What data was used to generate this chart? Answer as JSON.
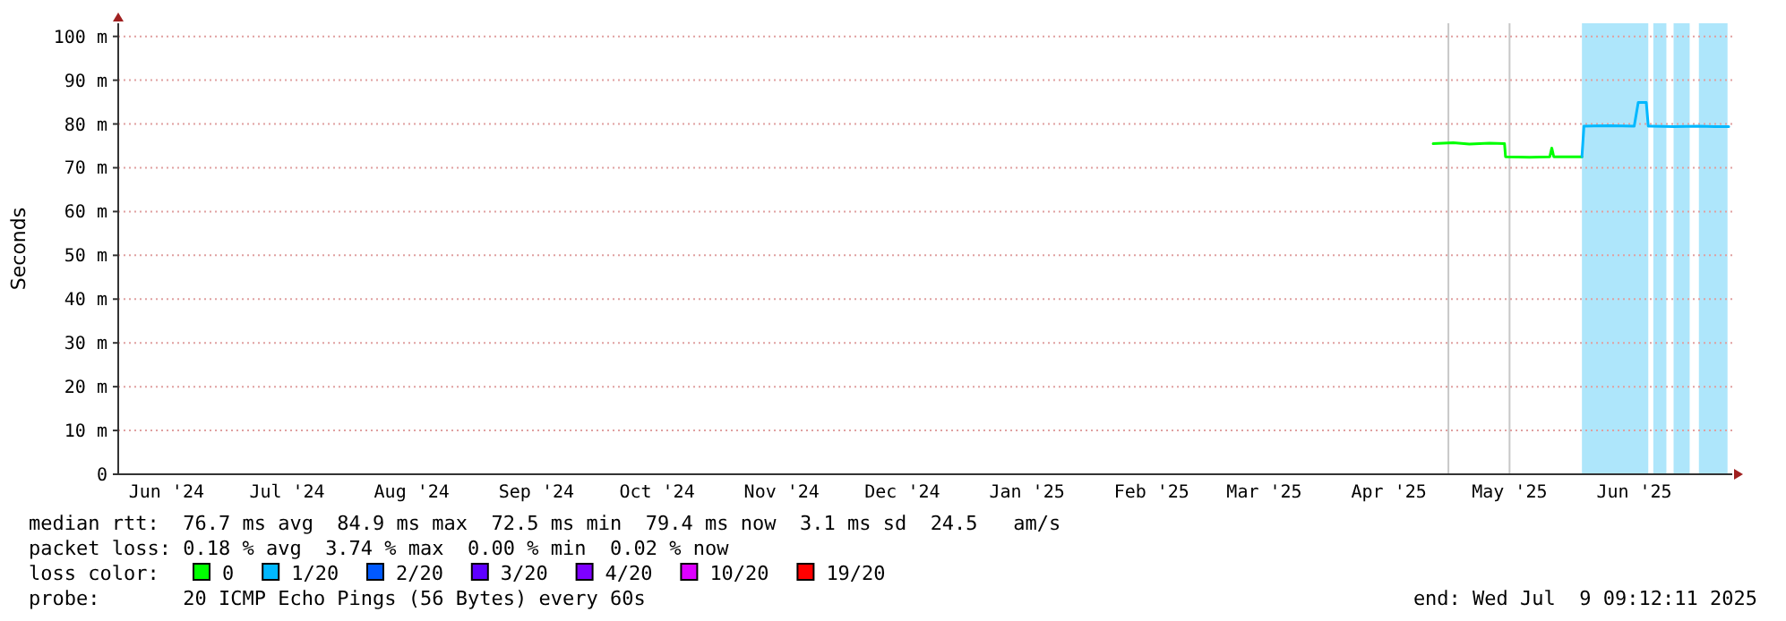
{
  "chart_data": {
    "type": "line",
    "ylabel": "Seconds",
    "legend_title": "loss color:",
    "legend": "bottom",
    "grid": "y",
    "xlim": [
      "2024-06-03",
      "2025-07-09T09:12"
    ],
    "xticks": [
      {
        "value": "2024-06-15",
        "label": "Jun '24"
      },
      {
        "value": "2024-07-15",
        "label": "Jul '24"
      },
      {
        "value": "2024-08-15",
        "label": "Aug '24"
      },
      {
        "value": "2024-09-15",
        "label": "Sep '24"
      },
      {
        "value": "2024-10-15",
        "label": "Oct '24"
      },
      {
        "value": "2024-11-15",
        "label": "Nov '24"
      },
      {
        "value": "2024-12-15",
        "label": "Dec '24"
      },
      {
        "value": "2025-01-15",
        "label": "Jan '25"
      },
      {
        "value": "2025-02-15",
        "label": "Feb '25"
      },
      {
        "value": "2025-03-15",
        "label": "Mar '25"
      },
      {
        "value": "2025-04-15",
        "label": "Apr '25"
      },
      {
        "value": "2025-05-15",
        "label": "May '25"
      },
      {
        "value": "2025-06-15",
        "label": "Jun '25"
      }
    ],
    "ylim": [
      0,
      103
    ],
    "yticks": [
      0,
      {
        "value": 10,
        "label": "10 m"
      },
      {
        "value": 20,
        "label": "20 m"
      },
      {
        "value": 30,
        "label": "30 m"
      },
      {
        "value": 40,
        "label": "40 m"
      },
      {
        "value": 50,
        "label": "50 m"
      },
      {
        "value": 60,
        "label": "60 m"
      },
      {
        "value": 70,
        "label": "70 m"
      },
      {
        "value": 80,
        "label": "80 m"
      },
      {
        "value": 90,
        "label": "90 m"
      },
      {
        "value": 100,
        "label": "100 m"
      }
    ],
    "series": [
      {
        "name": "0",
        "color": "#00ff00",
        "x": [
          "2025-04-26",
          "2025-05-01",
          "2025-05-05",
          "2025-05-10",
          "2025-05-13T18:00",
          "2025-05-14",
          "2025-05-20",
          "2025-05-25",
          "2025-05-25T12:00",
          "2025-05-26",
          "2025-06-02"
        ],
        "values": [
          75.5,
          75.7,
          75.4,
          75.6,
          75.5,
          72.5,
          72.4,
          72.5,
          74.5,
          72.5,
          72.5
        ]
      },
      {
        "name": "1/20",
        "color": "#00b8ff",
        "x": [
          "2025-06-02",
          "2025-06-02T12:00",
          "2025-06-09",
          "2025-06-15",
          "2025-06-16",
          "2025-06-18",
          "2025-06-18T12:00",
          "2025-06-19",
          "2025-06-25",
          "2025-07-01",
          "2025-07-05",
          "2025-07-08T12:00"
        ],
        "values": [
          72.5,
          79.5,
          79.6,
          79.5,
          84.9,
          84.9,
          79.5,
          79.5,
          79.4,
          79.5,
          79.4,
          79.4
        ]
      },
      {
        "name": "2/20",
        "color": "#0059ff"
      },
      {
        "name": "3/20",
        "color": "#5e00ff"
      },
      {
        "name": "4/20",
        "color": "#7e00ff"
      },
      {
        "name": "10/20",
        "color": "#dd00ff"
      },
      {
        "name": "19/20",
        "color": "#ff0000"
      }
    ],
    "bands": [
      {
        "axis": "x",
        "from": "2025-06-02T00:00",
        "to": "2025-06-18T12:00",
        "color": "#aee6fb"
      },
      {
        "axis": "x",
        "from": "2025-06-19T18:00",
        "to": "2025-06-23T00:00",
        "color": "#aee6fb"
      },
      {
        "axis": "x",
        "from": "2025-06-24T19:00",
        "to": "2025-06-28T19:00",
        "color": "#aee6fb"
      },
      {
        "axis": "x",
        "from": "2025-07-01T02:00",
        "to": "2025-07-08T05:00",
        "color": "#aee6fb"
      }
    ],
    "ref_lines": [
      {
        "axis": "x",
        "value": "2025-04-29T19:00",
        "color": "#c8c8c8"
      },
      {
        "axis": "x",
        "value": "2025-05-15T00:00",
        "color": "#c8c8c8"
      }
    ],
    "annotations": [
      "median rtt:  76.7 ms avg  84.9 ms max  72.5 ms min  79.4 ms now  3.1 ms sd  24.5   am/s",
      "packet loss: 0.18 % avg  3.74 % max  0.00 % min  0.02 % now",
      "probe:       20 ICMP Echo Pings (56 Bytes) every 60s",
      "end: Wed Jul  9 09:12:11 2025"
    ]
  }
}
